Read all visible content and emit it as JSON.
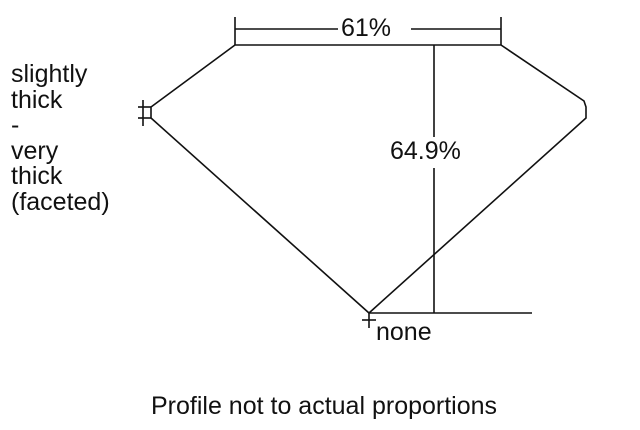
{
  "diagram": {
    "table_percent": "61%",
    "depth_percent": "64.9%",
    "girdle_label": [
      "slightly",
      "thick",
      "-",
      "very",
      "thick",
      "(faceted)"
    ],
    "culet_label": "none",
    "caption": "Profile not to actual proportions",
    "line_color": "#111111"
  }
}
